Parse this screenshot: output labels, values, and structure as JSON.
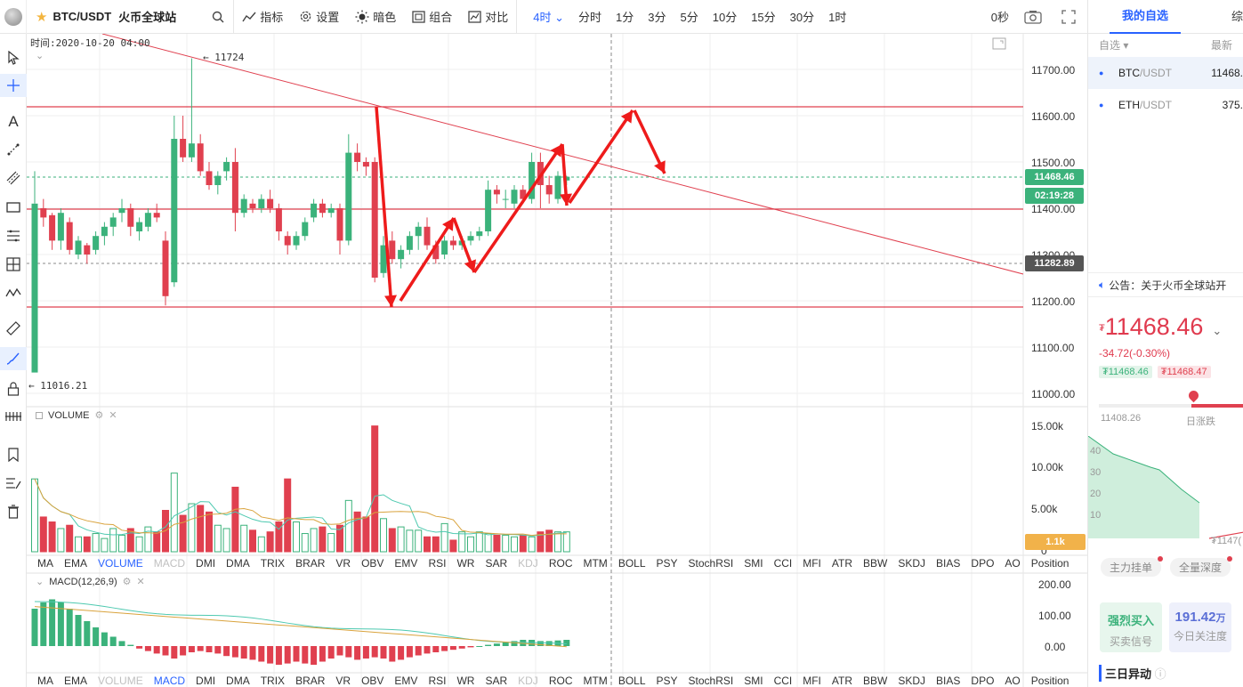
{
  "topbar": {
    "symbol": "BTC/USDT",
    "exchange": "火币全球站",
    "indicators_label": "指标",
    "settings_label": "设置",
    "theme_label": "暗色",
    "group_label": "组合",
    "compare_label": "对比",
    "active_interval": "4时",
    "intervals": [
      "分时",
      "1分",
      "3分",
      "5分",
      "10分",
      "15分",
      "30分",
      "1时"
    ],
    "countdown": "0秒"
  },
  "chart": {
    "time_readout": "时间:2020-10-20 04:00",
    "high_marker": "11724",
    "low_marker": "11016.21",
    "price_ticks": [
      "11700.00",
      "11600.00",
      "11500.00",
      "11400.00",
      "11300.00",
      "11200.00",
      "11100.00",
      "11000.00"
    ],
    "last_price": "11468.46",
    "countdown_box": "02:19:28",
    "hline_price": "11282.89",
    "volume_title": "VOLUME",
    "volume_ticks": [
      "15.00k",
      "10.00k",
      "5.00k",
      "0"
    ],
    "volume_last": "1.1k",
    "macd_title": "MACD(12,26,9)",
    "macd_ticks": [
      "200.00",
      "100.00",
      "0.00"
    ],
    "indicators": [
      "MA",
      "EMA",
      "VOLUME",
      "MACD",
      "DMI",
      "DMA",
      "TRIX",
      "BRAR",
      "VR",
      "OBV",
      "EMV",
      "RSI",
      "WR",
      "SAR",
      "KDJ",
      "ROC",
      "MTM",
      "BOLL",
      "PSY",
      "StochRSI",
      "SMI",
      "CCI",
      "MFI",
      "ATR",
      "BBW",
      "SKDJ",
      "BIAS",
      "DPO",
      "AO",
      "Position"
    ],
    "colors": {
      "up": "#3bb27b",
      "down": "#e0404f",
      "accent": "#2962ff",
      "line": "#e0404f",
      "arrow": "#ee1b1b"
    }
  },
  "right_panel": {
    "tab_active": "我的自选",
    "tab_other": "综",
    "watch_header_left": "自选",
    "watch_header_right": "最新",
    "watchlist": [
      {
        "base": "BTC",
        "quote": "/USDT",
        "price": "11468."
      },
      {
        "base": "ETH",
        "quote": "/USDT",
        "price": "375."
      }
    ],
    "notice": "公告：关于火币全球站开",
    "currency_symbol": "₮",
    "price": "11468.46",
    "change": "-34.72(-0.30%)",
    "bid": "₮11468.46",
    "ask": "₮11468.47",
    "low_label": "11408.26",
    "range_label": "日涨跌",
    "mini_ticks": [
      "40",
      "30",
      "20",
      "10"
    ],
    "mini_right": "₮1147(",
    "chip1": "主力挂单",
    "chip2": "全量深度",
    "card1_value": "强烈买入",
    "card1_label": "买卖信号",
    "card2_value": "191.42",
    "card2_unit": "万",
    "card2_label": "今日关注度",
    "section_title": "三日异动"
  }
}
